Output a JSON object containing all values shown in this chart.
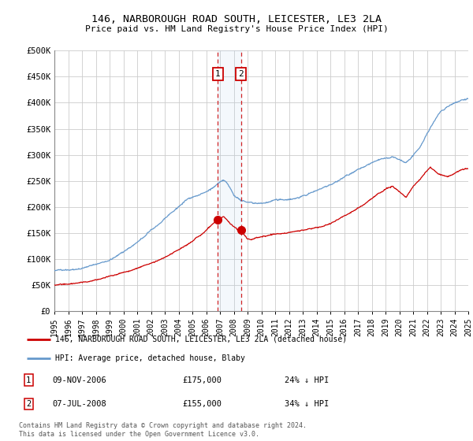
{
  "title": "146, NARBOROUGH ROAD SOUTH, LEICESTER, LE3 2LA",
  "subtitle": "Price paid vs. HM Land Registry's House Price Index (HPI)",
  "legend_line1": "146, NARBOROUGH ROAD SOUTH, LEICESTER, LE3 2LA (detached house)",
  "legend_line2": "HPI: Average price, detached house, Blaby",
  "transaction1_date": "09-NOV-2006",
  "transaction1_price": "£175,000",
  "transaction1_hpi": "24% ↓ HPI",
  "transaction2_date": "07-JUL-2008",
  "transaction2_price": "£155,000",
  "transaction2_hpi": "34% ↓ HPI",
  "footer": "Contains HM Land Registry data © Crown copyright and database right 2024.\nThis data is licensed under the Open Government Licence v3.0.",
  "red_line_color": "#cc0000",
  "blue_line_color": "#6699cc",
  "vline_color": "#cc0000",
  "marker_box_color": "#cc0000",
  "ylim_max": 500000,
  "yticks": [
    0,
    50000,
    100000,
    150000,
    200000,
    250000,
    300000,
    350000,
    400000,
    450000,
    500000
  ],
  "ytick_labels": [
    "£0",
    "£50K",
    "£100K",
    "£150K",
    "£200K",
    "£250K",
    "£300K",
    "£350K",
    "£400K",
    "£450K",
    "£500K"
  ],
  "xtick_years": [
    1995,
    1996,
    1997,
    1998,
    1999,
    2000,
    2001,
    2002,
    2003,
    2004,
    2005,
    2006,
    2007,
    2008,
    2009,
    2010,
    2011,
    2012,
    2013,
    2014,
    2015,
    2016,
    2017,
    2018,
    2019,
    2020,
    2021,
    2022,
    2023,
    2024,
    2025
  ],
  "vline1_x": 2006.85,
  "vline2_x": 2008.52,
  "marker1_x": 2006.85,
  "marker1_y": 175000,
  "marker2_x": 2008.52,
  "marker2_y": 155000,
  "hpi_knots_x": [
    1995.0,
    1995.5,
    1996.0,
    1996.5,
    1997.0,
    1997.5,
    1998.0,
    1998.5,
    1999.0,
    1999.5,
    2000.0,
    2000.5,
    2001.0,
    2001.5,
    2002.0,
    2002.5,
    2003.0,
    2003.5,
    2004.0,
    2004.5,
    2005.0,
    2005.5,
    2006.0,
    2006.5,
    2007.0,
    2007.25,
    2007.5,
    2007.75,
    2008.0,
    2008.5,
    2009.0,
    2009.5,
    2010.0,
    2010.5,
    2011.0,
    2011.5,
    2012.0,
    2012.5,
    2013.0,
    2013.5,
    2014.0,
    2014.5,
    2015.0,
    2015.5,
    2016.0,
    2016.5,
    2017.0,
    2017.5,
    2018.0,
    2018.5,
    2019.0,
    2019.5,
    2020.0,
    2020.5,
    2021.0,
    2021.5,
    2022.0,
    2022.5,
    2023.0,
    2023.5,
    2024.0,
    2024.5,
    2025.0
  ],
  "hpi_knots_y": [
    75000,
    76000,
    78000,
    80000,
    83000,
    87000,
    90000,
    94000,
    99000,
    106000,
    115000,
    124000,
    133000,
    143000,
    155000,
    165000,
    175000,
    187000,
    198000,
    210000,
    218000,
    222000,
    228000,
    235000,
    244000,
    248000,
    242000,
    232000,
    220000,
    210000,
    205000,
    203000,
    202000,
    205000,
    207000,
    208000,
    210000,
    213000,
    217000,
    222000,
    228000,
    235000,
    242000,
    250000,
    258000,
    265000,
    272000,
    278000,
    284000,
    288000,
    292000,
    295000,
    290000,
    285000,
    298000,
    315000,
    340000,
    365000,
    385000,
    395000,
    400000,
    405000,
    408000
  ],
  "red_knots_x": [
    1995.0,
    1995.5,
    1996.0,
    1996.5,
    1997.0,
    1997.5,
    1998.0,
    1998.5,
    1999.0,
    1999.5,
    2000.0,
    2000.5,
    2001.0,
    2001.5,
    2002.0,
    2002.5,
    2003.0,
    2003.5,
    2004.0,
    2004.5,
    2005.0,
    2005.25,
    2005.5,
    2005.75,
    2006.0,
    2006.25,
    2006.5,
    2006.85,
    2007.0,
    2007.25,
    2007.5,
    2007.75,
    2008.0,
    2008.25,
    2008.52,
    2008.75,
    2009.0,
    2009.25,
    2009.5,
    2010.0,
    2010.5,
    2011.0,
    2011.5,
    2012.0,
    2012.5,
    2013.0,
    2013.5,
    2014.0,
    2014.5,
    2015.0,
    2015.5,
    2016.0,
    2016.5,
    2017.0,
    2017.5,
    2018.0,
    2018.5,
    2019.0,
    2019.5,
    2020.0,
    2020.5,
    2021.0,
    2021.5,
    2022.0,
    2022.25,
    2022.5,
    2022.75,
    2023.0,
    2023.5,
    2024.0,
    2024.5,
    2025.0
  ],
  "red_knots_y": [
    50000,
    51000,
    52000,
    53000,
    55000,
    57000,
    59000,
    62000,
    65000,
    68000,
    72000,
    76000,
    80000,
    85000,
    90000,
    95000,
    101000,
    108000,
    115000,
    123000,
    132000,
    138000,
    142000,
    148000,
    155000,
    162000,
    168000,
    175000,
    178000,
    182000,
    175000,
    168000,
    162000,
    158000,
    155000,
    148000,
    140000,
    138000,
    140000,
    143000,
    145000,
    148000,
    149000,
    150000,
    152000,
    154000,
    156000,
    159000,
    162000,
    167000,
    173000,
    180000,
    187000,
    195000,
    203000,
    213000,
    222000,
    230000,
    235000,
    225000,
    215000,
    235000,
    248000,
    265000,
    272000,
    268000,
    262000,
    258000,
    255000,
    262000,
    268000,
    272000
  ],
  "background_color": "#ffffff",
  "grid_color": "#cccccc",
  "xlim_min": 1995,
  "xlim_max": 2025
}
